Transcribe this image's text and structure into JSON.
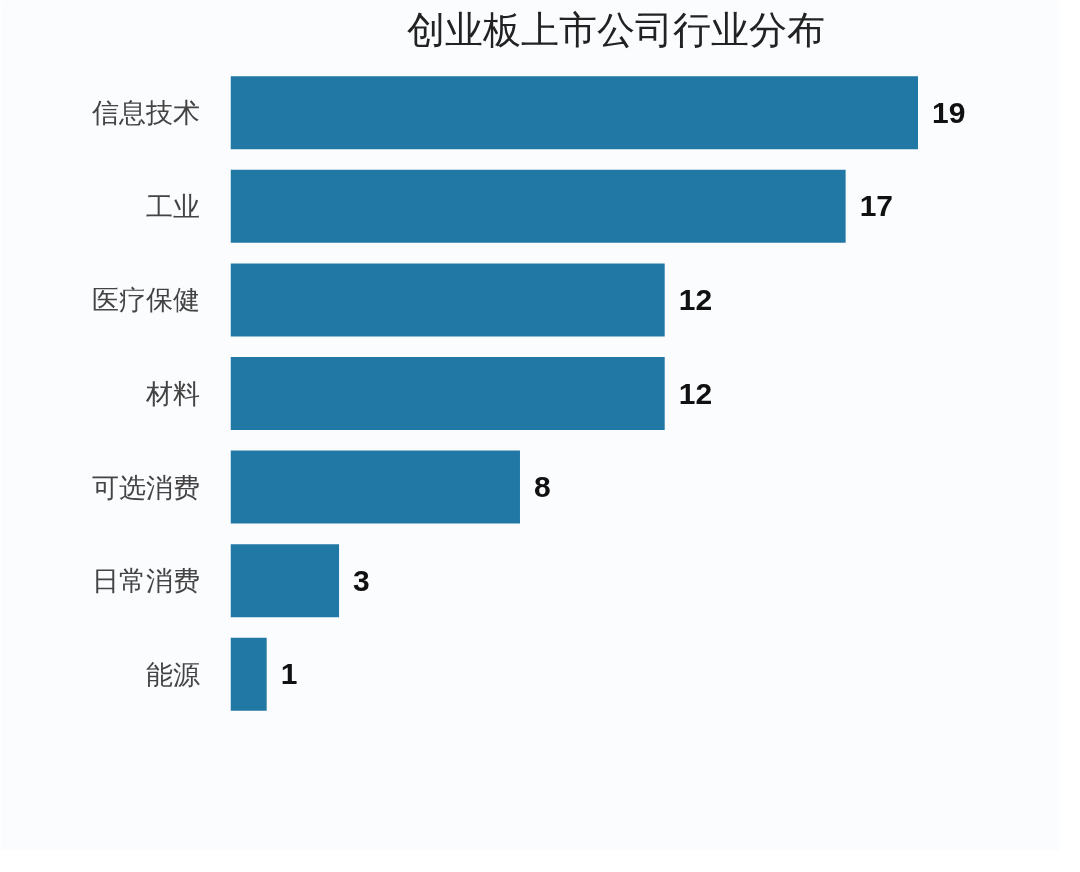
{
  "chart_data": {
    "type": "bar",
    "orientation": "horizontal",
    "title": "创业板上市公司行业分布",
    "categories": [
      "信息技术",
      "工业",
      "医疗保健",
      "材料",
      "可选消费",
      "日常消费",
      "能源"
    ],
    "values": [
      19,
      17,
      12,
      12,
      8,
      3,
      1
    ],
    "color": "#2278a5",
    "data_labels": true,
    "grid": false
  }
}
